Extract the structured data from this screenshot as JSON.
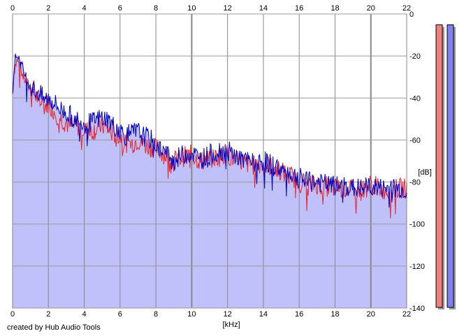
{
  "chart_data": {
    "type": "area",
    "xlabel": "[kHz]",
    "ylabel": "[dB]",
    "xlim": [
      0,
      22
    ],
    "ylim": [
      -140,
      0
    ],
    "x_ticks": [
      0,
      2,
      4,
      6,
      8,
      10,
      12,
      14,
      16,
      18,
      20,
      22
    ],
    "y_ticks": [
      0,
      -20,
      -40,
      -60,
      -80,
      -100,
      -120,
      -140
    ],
    "grid": true,
    "series": [
      {
        "color": "#e8242a",
        "x": [
          0.0,
          0.1,
          0.25,
          0.4,
          0.6,
          0.8,
          1.0,
          1.2,
          1.5,
          1.8,
          2.0,
          2.3,
          2.6,
          3.0,
          3.3,
          3.6,
          4.0,
          4.3,
          4.6,
          5.0,
          5.3,
          5.6,
          6.0,
          6.3,
          6.6,
          7.0,
          7.3,
          7.6,
          8.0,
          8.5,
          9.0,
          9.5,
          10.0,
          10.5,
          11.0,
          11.5,
          12.0,
          12.5,
          13.0,
          13.5,
          14.0,
          14.5,
          15.0,
          15.5,
          16.0,
          16.5,
          17.0,
          17.5,
          18.0,
          18.5,
          19.0,
          19.5,
          20.0,
          20.5,
          21.0,
          21.5,
          22.0
        ],
        "y": [
          -38,
          -26,
          -22,
          -25,
          -30,
          -33,
          -36,
          -38,
          -41,
          -44,
          -42,
          -46,
          -49,
          -52,
          -54,
          -53,
          -55,
          -56,
          -55,
          -53,
          -55,
          -57,
          -58,
          -61,
          -62,
          -60,
          -62,
          -63,
          -64,
          -67,
          -70,
          -68,
          -67,
          -70,
          -69,
          -68,
          -67,
          -70,
          -71,
          -72,
          -71,
          -73,
          -75,
          -77,
          -79,
          -81,
          -81,
          -82,
          -83,
          -83,
          -84,
          -84,
          -81,
          -83,
          -84,
          -83,
          -83
        ]
      },
      {
        "color": "#0000c8",
        "x": [
          0.0,
          0.1,
          0.25,
          0.4,
          0.6,
          0.8,
          1.0,
          1.2,
          1.5,
          1.8,
          2.0,
          2.3,
          2.6,
          3.0,
          3.3,
          3.6,
          4.0,
          4.3,
          4.6,
          5.0,
          5.3,
          5.6,
          6.0,
          6.3,
          6.6,
          7.0,
          7.3,
          7.6,
          8.0,
          8.5,
          9.0,
          9.5,
          10.0,
          10.5,
          11.0,
          11.5,
          12.0,
          12.5,
          13.0,
          13.5,
          14.0,
          14.5,
          15.0,
          15.5,
          16.0,
          16.5,
          17.0,
          17.5,
          18.0,
          18.5,
          19.0,
          19.5,
          20.0,
          20.5,
          21.0,
          21.5,
          22.0
        ],
        "y": [
          -35,
          -23,
          -19,
          -22,
          -27,
          -31,
          -34,
          -36,
          -38,
          -41,
          -40,
          -42,
          -45,
          -47,
          -49,
          -50,
          -52,
          -52,
          -51,
          -49,
          -50,
          -53,
          -55,
          -58,
          -57,
          -56,
          -58,
          -59,
          -62,
          -66,
          -70,
          -67,
          -66,
          -69,
          -67,
          -65,
          -65,
          -68,
          -70,
          -71,
          -70,
          -72,
          -74,
          -76,
          -78,
          -80,
          -80,
          -81,
          -82,
          -82,
          -83,
          -83,
          -82,
          -83,
          -83,
          -83,
          -84
        ]
      }
    ],
    "level_meters": [
      {
        "color": "#f08080",
        "level": 0.97
      },
      {
        "color": "#8080f0",
        "level": 0.97
      }
    ]
  },
  "credit": "created by Hub Audio Tools"
}
